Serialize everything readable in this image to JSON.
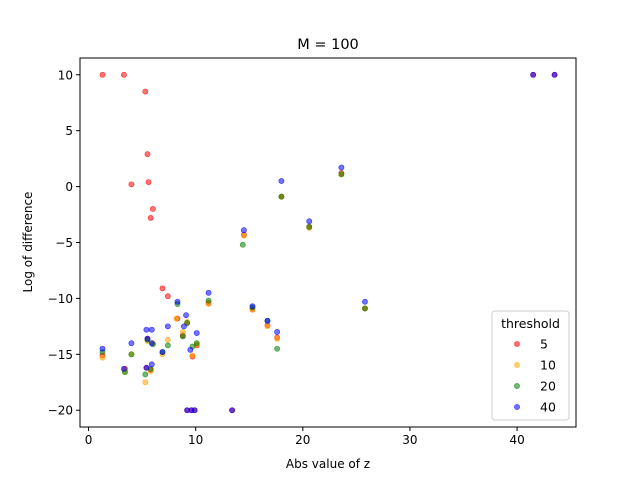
{
  "chart_data": {
    "type": "scatter",
    "title": "M = 100",
    "xlabel": "Abs value of z",
    "ylabel": "Log of difference",
    "xlim": [
      -0.8,
      45.5
    ],
    "ylim": [
      -21.5,
      11.5
    ],
    "xticks": [
      0,
      10,
      20,
      30,
      40
    ],
    "yticks": [
      -20,
      -15,
      -10,
      -5,
      0,
      5,
      10
    ],
    "legend": {
      "title": "threshold",
      "placement": "lower-right"
    },
    "series": [
      {
        "name": "5",
        "color": "#ff0000",
        "points": [
          [
            1.3,
            10
          ],
          [
            3.3,
            10
          ],
          [
            5.3,
            8.5
          ],
          [
            5.5,
            2.9
          ],
          [
            5.6,
            0.4
          ],
          [
            4.0,
            0.2
          ],
          [
            6.0,
            -2.0
          ],
          [
            5.8,
            -2.8
          ],
          [
            6.9,
            -9.1
          ],
          [
            7.4,
            -9.8
          ],
          [
            8.3,
            -11.8
          ],
          [
            9.2,
            -12.2
          ],
          [
            8.8,
            -13.3
          ],
          [
            5.5,
            -13.6
          ],
          [
            1.3,
            -15.1
          ],
          [
            3.4,
            -16.3
          ],
          [
            5.4,
            -16.2
          ],
          [
            5.8,
            -16.4
          ],
          [
            9.7,
            -15.2
          ],
          [
            10.1,
            -14.2
          ],
          [
            11.2,
            -10.4
          ],
          [
            14.5,
            -4.3
          ],
          [
            15.3,
            -11.0
          ],
          [
            16.7,
            -12.4
          ],
          [
            17.6,
            -13.5
          ],
          [
            18.0,
            -0.9
          ],
          [
            20.6,
            -3.6
          ],
          [
            23.6,
            1.2
          ],
          [
            25.8,
            -10.9
          ],
          [
            9.2,
            -20
          ],
          [
            9.6,
            -20
          ],
          [
            9.9,
            -20
          ],
          [
            13.4,
            -20
          ],
          [
            41.5,
            10
          ],
          [
            43.5,
            10
          ]
        ]
      },
      {
        "name": "10",
        "color": "#ffa500",
        "points": [
          [
            1.3,
            -15.3
          ],
          [
            3.4,
            -16.5
          ],
          [
            5.3,
            -17.5
          ],
          [
            5.8,
            -16.5
          ],
          [
            4.0,
            -15.0
          ],
          [
            6.9,
            -15.0
          ],
          [
            7.4,
            -13.7
          ],
          [
            8.2,
            -11.8
          ],
          [
            8.8,
            -13.0
          ],
          [
            9.2,
            -12.1
          ],
          [
            9.7,
            -15.1
          ],
          [
            10.1,
            -14.1
          ],
          [
            11.2,
            -10.5
          ],
          [
            14.5,
            -4.4
          ],
          [
            15.3,
            -11.0
          ],
          [
            16.7,
            -12.5
          ],
          [
            17.6,
            -13.6
          ],
          [
            18.0,
            -0.9
          ],
          [
            20.6,
            -3.7
          ],
          [
            23.6,
            1.1
          ],
          [
            25.8,
            -10.9
          ],
          [
            5.5,
            -13.8
          ],
          [
            6.0,
            -14.0
          ]
        ]
      },
      {
        "name": "20",
        "color": "#008000",
        "points": [
          [
            1.3,
            -14.8
          ],
          [
            3.4,
            -16.6
          ],
          [
            5.3,
            -16.8
          ],
          [
            4.0,
            -15.0
          ],
          [
            5.5,
            -13.7
          ],
          [
            6.0,
            -14.1
          ],
          [
            6.9,
            -14.8
          ],
          [
            7.4,
            -14.2
          ],
          [
            8.3,
            -10.5
          ],
          [
            8.8,
            -13.4
          ],
          [
            9.2,
            -12.2
          ],
          [
            9.7,
            -14.3
          ],
          [
            10.1,
            -14.0
          ],
          [
            11.2,
            -10.2
          ],
          [
            14.4,
            -5.2
          ],
          [
            15.3,
            -10.8
          ],
          [
            16.7,
            -12.0
          ],
          [
            17.6,
            -14.5
          ],
          [
            18.0,
            -0.9
          ],
          [
            20.6,
            -3.6
          ],
          [
            23.6,
            1.1
          ],
          [
            25.8,
            -10.9
          ],
          [
            5.8,
            -16.3
          ]
        ]
      },
      {
        "name": "40",
        "color": "#0000ff",
        "points": [
          [
            1.3,
            -14.5
          ],
          [
            3.3,
            -16.3
          ],
          [
            4.0,
            -14.0
          ],
          [
            5.4,
            -12.8
          ],
          [
            5.9,
            -12.8
          ],
          [
            5.5,
            -13.6
          ],
          [
            5.9,
            -14.0
          ],
          [
            5.4,
            -16.2
          ],
          [
            5.9,
            -15.9
          ],
          [
            6.9,
            -14.8
          ],
          [
            7.4,
            -12.5
          ],
          [
            8.3,
            -10.3
          ],
          [
            8.9,
            -12.5
          ],
          [
            9.1,
            -11.5
          ],
          [
            9.5,
            -14.6
          ],
          [
            10.1,
            -13.1
          ],
          [
            11.2,
            -9.5
          ],
          [
            14.5,
            -3.9
          ],
          [
            15.3,
            -10.7
          ],
          [
            16.7,
            -12.0
          ],
          [
            17.6,
            -13.0
          ],
          [
            18.0,
            0.5
          ],
          [
            20.6,
            -3.1
          ],
          [
            23.6,
            1.7
          ],
          [
            25.8,
            -10.3
          ],
          [
            9.2,
            -20
          ],
          [
            9.6,
            -20
          ],
          [
            9.9,
            -20
          ],
          [
            13.4,
            -20
          ],
          [
            41.5,
            10
          ],
          [
            43.5,
            10
          ]
        ]
      }
    ]
  }
}
